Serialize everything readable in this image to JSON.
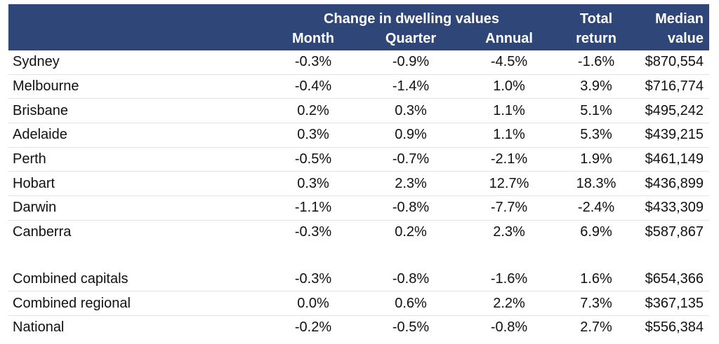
{
  "header": {
    "group_label": "Change in dwelling values",
    "month_label": "Month",
    "quarter_label": "Quarter",
    "annual_label": "Annual",
    "total_return_line1": "Total",
    "total_return_line2": "return",
    "median_line1": "Median",
    "median_line2": "value"
  },
  "rows": [
    {
      "name": "Sydney",
      "month": "-0.3%",
      "quarter": "-0.9%",
      "annual": "-4.5%",
      "total": "-1.6%",
      "median": "$870,554"
    },
    {
      "name": "Melbourne",
      "month": "-0.4%",
      "quarter": "-1.4%",
      "annual": "1.0%",
      "total": "3.9%",
      "median": "$716,774"
    },
    {
      "name": "Brisbane",
      "month": "0.2%",
      "quarter": "0.3%",
      "annual": "1.1%",
      "total": "5.1%",
      "median": "$495,242"
    },
    {
      "name": "Adelaide",
      "month": "0.3%",
      "quarter": "0.9%",
      "annual": "1.1%",
      "total": "5.3%",
      "median": "$439,215"
    },
    {
      "name": "Perth",
      "month": "-0.5%",
      "quarter": "-0.7%",
      "annual": "-2.1%",
      "total": "1.9%",
      "median": "$461,149"
    },
    {
      "name": "Hobart",
      "month": "0.3%",
      "quarter": "2.3%",
      "annual": "12.7%",
      "total": "18.3%",
      "median": "$436,899"
    },
    {
      "name": "Darwin",
      "month": "-1.1%",
      "quarter": "-0.8%",
      "annual": "-7.7%",
      "total": "-2.4%",
      "median": "$433,309"
    },
    {
      "name": "Canberra",
      "month": "-0.3%",
      "quarter": "0.2%",
      "annual": "2.3%",
      "total": "6.9%",
      "median": "$587,867"
    }
  ],
  "summary_rows": [
    {
      "name": "Combined capitals",
      "month": "-0.3%",
      "quarter": "-0.8%",
      "annual": "-1.6%",
      "total": "1.6%",
      "median": "$654,366"
    },
    {
      "name": "Combined regional",
      "month": "0.0%",
      "quarter": "0.6%",
      "annual": "2.2%",
      "total": "7.3%",
      "median": "$367,135"
    },
    {
      "name": "National",
      "month": "-0.2%",
      "quarter": "-0.5%",
      "annual": "-0.8%",
      "total": "2.7%",
      "median": "$556,384"
    }
  ],
  "colors": {
    "header_background": "#2e4778",
    "header_text": "#ffffff"
  }
}
